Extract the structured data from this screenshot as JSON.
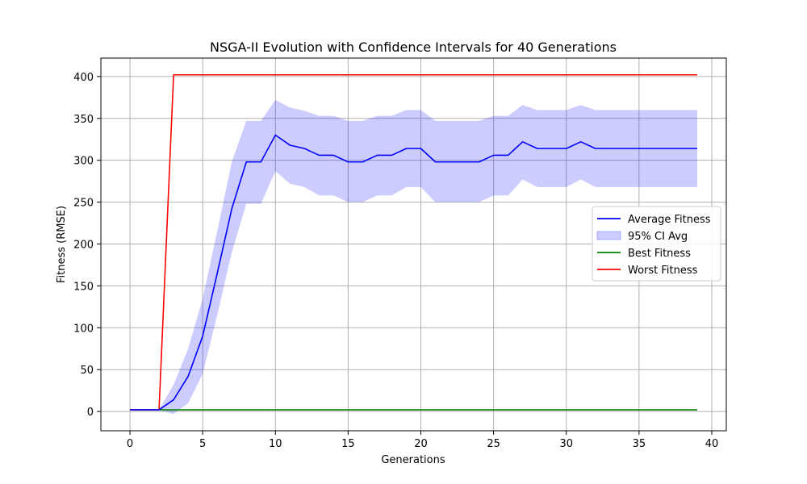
{
  "chart_data": {
    "type": "line",
    "title": "NSGA-II Evolution with Confidence Intervals for 40 Generations",
    "xlabel": "Generations",
    "ylabel": "Fitness (RMSE)",
    "xlim": [
      -2,
      41
    ],
    "ylim": [
      -23,
      422
    ],
    "xticks": [
      0,
      5,
      10,
      15,
      20,
      25,
      30,
      35,
      40
    ],
    "yticks": [
      0,
      50,
      100,
      150,
      200,
      250,
      300,
      350,
      400
    ],
    "grid": true,
    "legend_position": "center-right",
    "x": [
      0,
      1,
      2,
      3,
      4,
      5,
      6,
      7,
      8,
      9,
      10,
      11,
      12,
      13,
      14,
      15,
      16,
      17,
      18,
      19,
      20,
      21,
      22,
      23,
      24,
      25,
      26,
      27,
      28,
      29,
      30,
      31,
      32,
      33,
      34,
      35,
      36,
      37,
      38,
      39
    ],
    "series": [
      {
        "name": "Average Fitness",
        "kind": "line",
        "color": "#0000ff",
        "values": [
          2,
          2,
          2,
          14,
          42,
          90,
          165,
          242,
          298,
          298,
          330,
          318,
          314,
          306,
          306,
          298,
          298,
          306,
          306,
          314,
          314,
          298,
          298,
          298,
          298,
          306,
          306,
          322,
          314,
          314,
          314,
          322,
          314,
          314,
          314,
          314,
          314,
          314,
          314,
          314
        ]
      },
      {
        "name": "95% CI Avg",
        "kind": "band",
        "color": "#0000ff",
        "lower": [
          2,
          2,
          2,
          -3,
          10,
          45,
          115,
          190,
          248,
          248,
          287,
          272,
          268,
          258,
          258,
          250,
          250,
          258,
          258,
          268,
          268,
          250,
          250,
          250,
          250,
          258,
          258,
          277,
          268,
          268,
          268,
          277,
          268,
          268,
          268,
          268,
          268,
          268,
          268,
          268
        ],
        "upper": [
          2,
          2,
          2,
          32,
          75,
          135,
          215,
          298,
          347,
          347,
          372,
          363,
          359,
          353,
          353,
          347,
          347,
          353,
          353,
          360,
          360,
          347,
          347,
          347,
          347,
          353,
          353,
          366,
          360,
          360,
          360,
          366,
          360,
          360,
          360,
          360,
          360,
          360,
          360,
          360
        ]
      },
      {
        "name": "Best Fitness",
        "kind": "line",
        "color": "#008000",
        "values": [
          2,
          2,
          2,
          2,
          2,
          2,
          2,
          2,
          2,
          2,
          2,
          2,
          2,
          2,
          2,
          2,
          2,
          2,
          2,
          2,
          2,
          2,
          2,
          2,
          2,
          2,
          2,
          2,
          2,
          2,
          2,
          2,
          2,
          2,
          2,
          2,
          2,
          2,
          2,
          2
        ]
      },
      {
        "name": "Worst Fitness",
        "kind": "line",
        "color": "#ff0000",
        "values": [
          2,
          2,
          2,
          402,
          402,
          402,
          402,
          402,
          402,
          402,
          402,
          402,
          402,
          402,
          402,
          402,
          402,
          402,
          402,
          402,
          402,
          402,
          402,
          402,
          402,
          402,
          402,
          402,
          402,
          402,
          402,
          402,
          402,
          402,
          402,
          402,
          402,
          402,
          402,
          402
        ]
      }
    ],
    "legend_order": [
      "Average Fitness",
      "95% CI Avg",
      "Best Fitness",
      "Worst Fitness"
    ]
  }
}
